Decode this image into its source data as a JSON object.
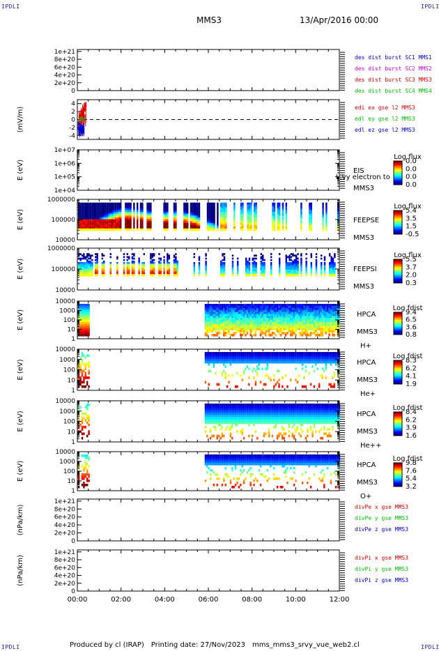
{
  "header": {
    "corner_label": "IPDLI",
    "spacecraft": "MMS3",
    "date": "13/Apr/2016 00:00"
  },
  "footer": {
    "produced_by": "Produced by cl (IRAP)",
    "printing_date": "Printing date: 27/Nov/2023",
    "script_name": "mms_mms3_srvy_vue_web2.cl"
  },
  "colors": {
    "red": "#dd0000",
    "magenta": "#cc00cc",
    "green": "#00c000",
    "blue": "#0000cc"
  },
  "chart_data": [
    {
      "type": "line",
      "ylabel": "",
      "yticks": [
        "1e+21",
        "8e+20",
        "6e+20",
        "4e+20",
        "2e+20",
        "0"
      ],
      "ylim": [
        0,
        1.05e+21
      ],
      "zero_line": true,
      "legend_placement": "right",
      "series": [
        {
          "name": "des dist burst SC1 MMS1",
          "color": "#0000cc",
          "values": []
        },
        {
          "name": "des dist burst SC2 MMS2",
          "color": "#cc00cc",
          "values": []
        },
        {
          "name": "des dist burst SC3 MMS3",
          "color": "#dd0000",
          "values": []
        },
        {
          "name": "des dist burst SC4 MMS4",
          "color": "#00c000",
          "values": []
        }
      ]
    },
    {
      "type": "line",
      "ylabel": "(mV/m)",
      "yticks": [
        "4",
        "2",
        "0",
        "-2",
        "-4"
      ],
      "ylim": [
        -5,
        5
      ],
      "zero_line": true,
      "legend_placement": "right",
      "series": [
        {
          "name": "edi ex gse l2 MMS3",
          "color": "#dd0000",
          "x": [
            0.08,
            0.12,
            0.16,
            0.2,
            0.24,
            0.28,
            0.32,
            0.36,
            0.4
          ],
          "values": [
            0.2,
            1.5,
            0.8,
            2.5,
            1.0,
            3.2,
            2.0,
            4.2,
            3.0
          ]
        },
        {
          "name": "edl ey gse l2 MMS3",
          "color": "#00c000",
          "x": [
            0.08,
            0.14,
            0.2,
            0.26,
            0.32,
            0.38
          ],
          "values": [
            0.3,
            -0.4,
            0.6,
            -0.2,
            0.5,
            0.1
          ]
        },
        {
          "name": "edl ez gse l2 MMS3",
          "color": "#0000cc",
          "x": [
            0.08,
            0.12,
            0.16,
            0.2,
            0.24,
            0.28,
            0.32
          ],
          "values": [
            -1.0,
            -2.5,
            -1.5,
            -3.0,
            -2.0,
            -1.2,
            -0.8
          ]
        }
      ]
    },
    {
      "type": "heatmap",
      "ylabel": "E (eV)",
      "yticks": [
        "1e+07",
        "1e+06",
        "1e+05",
        "1e+04"
      ],
      "instrument": "EIS",
      "spacecraft": "MMS3",
      "overlay_text": "L.vy electron to",
      "colorbar_title": "Log flux",
      "colorbar_ticks": [
        "0.0",
        "0.0",
        "0.0",
        "0.0"
      ],
      "values": []
    },
    {
      "type": "heatmap",
      "ylabel": "E (eV)",
      "yticks": [
        "1000000",
        "100000",
        "10000"
      ],
      "instrument": "FEEPSE",
      "spacecraft": "MMS3",
      "colorbar_title": "Log flux",
      "colorbar_ticks": [
        "5.4",
        "3.5",
        "1.5",
        "-0.5"
      ],
      "x_start": 0.0,
      "x_end": 12.0,
      "gaps_from": 1.9,
      "gaps_to": 12.0,
      "hot_blocks": [
        [
          0.25,
          1.85
        ],
        [
          1.9,
          3.2
        ],
        [
          4.0,
          5.5
        ]
      ],
      "shape": "hump"
    },
    {
      "type": "heatmap",
      "ylabel": "E (eV)",
      "yticks": [
        "1000000",
        "100000",
        "10000"
      ],
      "instrument": "FEEPSI",
      "spacecraft": "MMS3",
      "colorbar_title": "Log flux",
      "colorbar_ticks": [
        "5.5",
        "3.7",
        "2.0",
        "0.3"
      ],
      "x_start": 0.0,
      "x_end": 12.0,
      "gaps_from": 0.7,
      "gaps_to": 12.0,
      "shape": "ion"
    },
    {
      "type": "heatmap",
      "ylabel": "E (eV)",
      "yticks": [
        "10000",
        "1000",
        "100",
        "10",
        "1"
      ],
      "instrument": "HPCA",
      "spacecraft": "MMS3",
      "species": "H+",
      "colorbar_title": "Log fdist",
      "colorbar_ticks": [
        "9.4",
        "6.5",
        "3.6",
        "0.8"
      ],
      "segments": [
        [
          0.0,
          0.6
        ],
        [
          5.8,
          12.0
        ]
      ],
      "shape": "hpca_h"
    },
    {
      "type": "heatmap",
      "ylabel": "E (eV)",
      "yticks": [
        "10000",
        "1000",
        "100",
        "10",
        "1"
      ],
      "instrument": "HPCA",
      "spacecraft": "MMS3",
      "species": "He+",
      "colorbar_title": "Log fdist",
      "colorbar_ticks": [
        "8.3",
        "6.2",
        "4.1",
        "1.9"
      ],
      "segments": [
        [
          0.0,
          0.6
        ],
        [
          5.8,
          12.0
        ]
      ],
      "shape": "hpca_he1"
    },
    {
      "type": "heatmap",
      "ylabel": "E (eV)",
      "yticks": [
        "10000",
        "1000",
        "100",
        "10",
        "1"
      ],
      "instrument": "HPCA",
      "spacecraft": "MMS3",
      "species": "He++",
      "colorbar_title": "Log fdist",
      "colorbar_ticks": [
        "8.4",
        "6.2",
        "3.9",
        "1.6"
      ],
      "segments": [
        [
          0.0,
          0.6
        ],
        [
          5.8,
          12.0
        ]
      ],
      "shape": "hpca_he2"
    },
    {
      "type": "heatmap",
      "ylabel": "E (eV)",
      "yticks": [
        "10000",
        "1000",
        "100",
        "10",
        "1"
      ],
      "instrument": "HPCA",
      "spacecraft": "MMS3",
      "species": "O+",
      "colorbar_title": "Log fdist",
      "colorbar_ticks": [
        "9.8",
        "7.6",
        "5.4",
        "3.2"
      ],
      "segments": [
        [
          0.0,
          0.6
        ],
        [
          5.8,
          12.0
        ]
      ],
      "shape": "hpca_o"
    },
    {
      "type": "line",
      "ylabel": "(nPa/km)",
      "yticks": [
        "1e+21",
        "8e+20",
        "6e+20",
        "4e+20",
        "2e+20",
        "0"
      ],
      "ylim": [
        0,
        1.05e+21
      ],
      "zero_line": true,
      "legend_placement": "right",
      "series": [
        {
          "name": "divPe x gse MMS3",
          "color": "#dd0000",
          "values": []
        },
        {
          "name": "divPe y gse MMS3",
          "color": "#00c000",
          "values": []
        },
        {
          "name": "divPe z gse MMS3",
          "color": "#0000cc",
          "values": []
        }
      ]
    },
    {
      "type": "line",
      "ylabel": "(nPa/km)",
      "yticks": [
        "1e+21",
        "8e+20",
        "6e+20",
        "4e+20",
        "2e+20",
        "0"
      ],
      "ylim": [
        0,
        1.05e+21
      ],
      "zero_line": true,
      "legend_placement": "right",
      "series": [
        {
          "name": "divPi x gse MMS3",
          "color": "#dd0000",
          "values": []
        },
        {
          "name": "divPi y gse MMS3",
          "color": "#00c000",
          "values": []
        },
        {
          "name": "divPi z gse MMS3",
          "color": "#0000cc",
          "values": []
        }
      ]
    }
  ],
  "x_axis": {
    "ticks": [
      "00:00",
      "02:00",
      "04:00",
      "06:00",
      "08:00",
      "10:00",
      "12:00"
    ],
    "range_hours": [
      0,
      12
    ]
  }
}
